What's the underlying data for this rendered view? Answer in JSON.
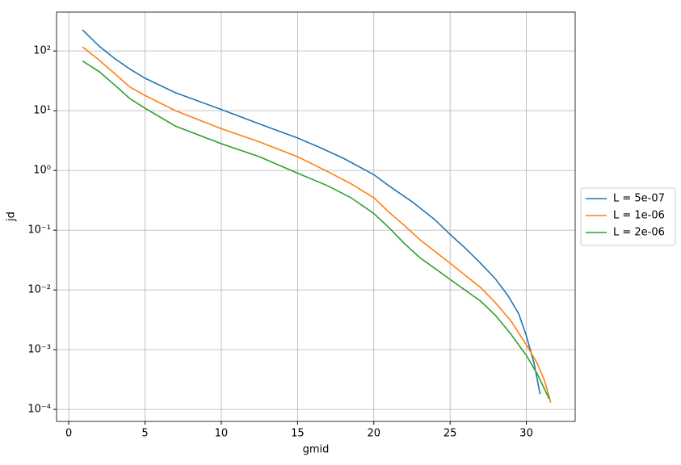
{
  "chart_data": {
    "type": "line",
    "x_label": "gmid",
    "y_label": "jd",
    "log_y": true,
    "grid": true,
    "legend_position": "right",
    "xlim": [
      -0.8,
      33.2
    ],
    "xticks": [
      0,
      5,
      10,
      15,
      20,
      25,
      30
    ],
    "ylim": [
      6.3e-05,
      447
    ],
    "yticks": [
      {
        "value": 0.0001,
        "label": "10⁻⁴"
      },
      {
        "value": 0.001,
        "label": "10⁻³"
      },
      {
        "value": 0.01,
        "label": "10⁻²"
      },
      {
        "value": 0.1,
        "label": "10⁻¹"
      },
      {
        "value": 1,
        "label": "10⁰"
      },
      {
        "value": 10,
        "label": "10¹"
      },
      {
        "value": 100,
        "label": "10²"
      }
    ],
    "series": [
      {
        "name": "L = 5e-07",
        "color": "#1f77b4",
        "x": [
          0.9,
          2,
          3,
          4,
          5,
          7,
          10,
          12.5,
          15,
          16.5,
          18,
          20,
          21,
          22.5,
          24,
          25,
          26,
          27,
          28,
          28.8,
          29.5,
          30,
          30.5,
          30.9
        ],
        "values": [
          225,
          120,
          75,
          50,
          35,
          20,
          10.5,
          6,
          3.5,
          2.4,
          1.6,
          0.85,
          0.55,
          0.3,
          0.15,
          0.085,
          0.05,
          0.028,
          0.015,
          0.008,
          0.004,
          0.0017,
          0.0006,
          0.00018
        ]
      },
      {
        "name": "L = 1e-06",
        "color": "#ff7f0e",
        "x": [
          0.9,
          2,
          3,
          4,
          5,
          7,
          10,
          12.5,
          15,
          17,
          18.5,
          20,
          21,
          22,
          23,
          25,
          27,
          28,
          29,
          30,
          30.7,
          31.2,
          31.6
        ],
        "values": [
          117,
          70,
          42,
          25,
          18,
          10,
          5,
          3,
          1.7,
          0.95,
          0.6,
          0.35,
          0.2,
          0.12,
          0.07,
          0.028,
          0.011,
          0.006,
          0.003,
          0.0012,
          0.0006,
          0.0003,
          0.00013
        ]
      },
      {
        "name": "L = 2e-06",
        "color": "#2ca02c",
        "x": [
          0.9,
          2,
          3,
          4,
          5,
          7,
          10,
          12.5,
          15,
          17,
          18.5,
          20,
          21,
          22,
          23,
          25,
          27,
          28,
          29,
          30,
          30.7,
          31.5
        ],
        "values": [
          68,
          45,
          27,
          16,
          11,
          5.5,
          2.8,
          1.7,
          0.9,
          0.55,
          0.35,
          0.19,
          0.11,
          0.06,
          0.035,
          0.015,
          0.0065,
          0.0037,
          0.0018,
          0.0008,
          0.0004,
          0.00015
        ]
      }
    ]
  }
}
